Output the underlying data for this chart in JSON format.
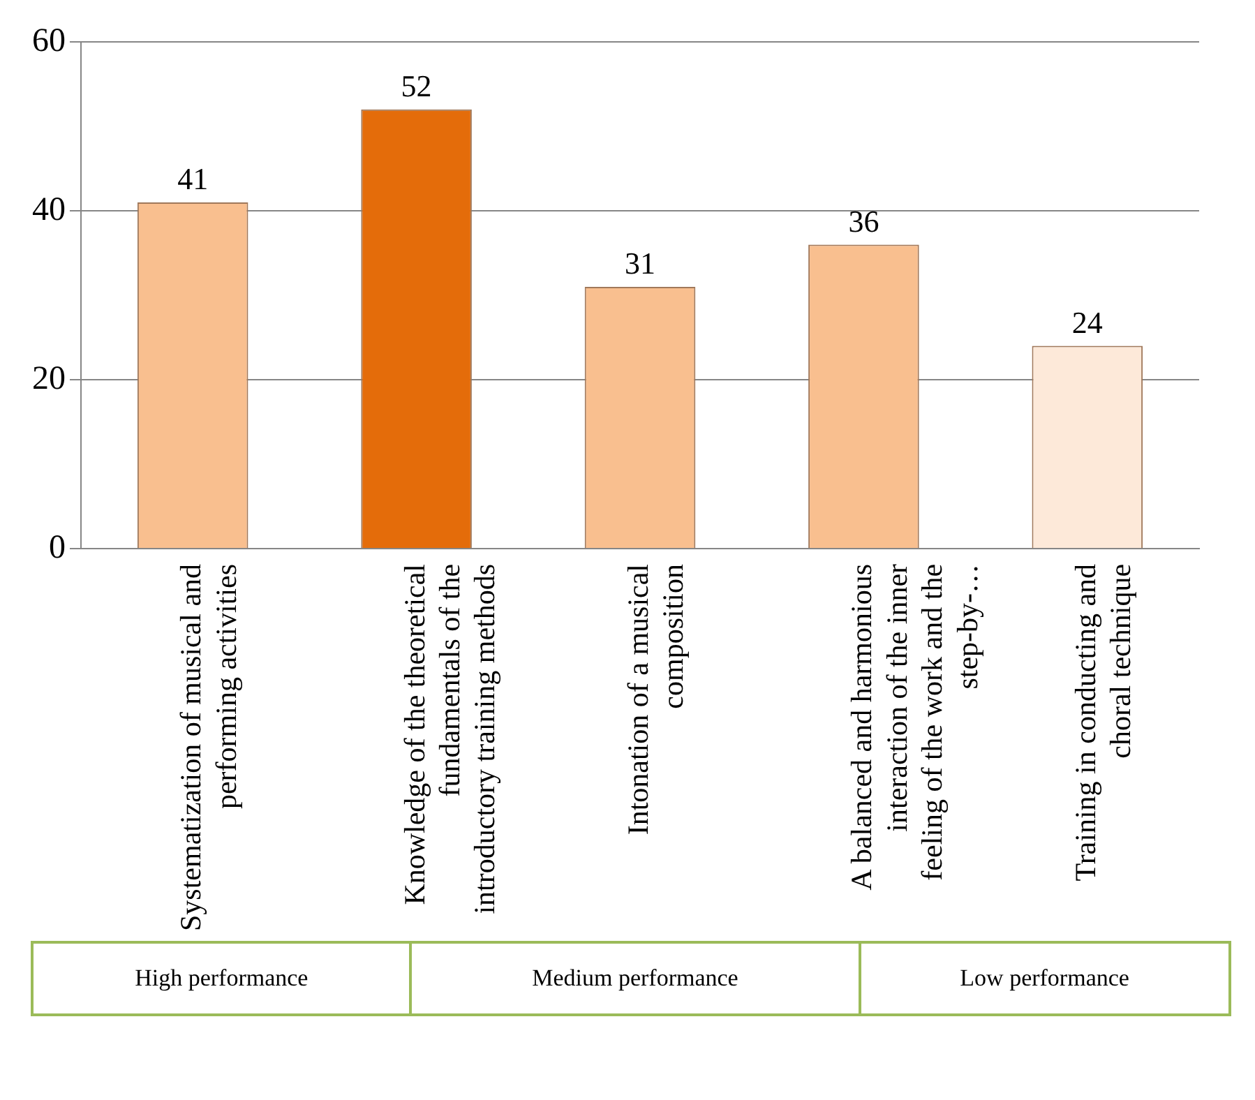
{
  "chart_data": {
    "type": "bar",
    "categories": [
      "Systematization of musical and performing activities",
      "Knowledge of the theoretical fundamentals of the introductory training methods",
      "Intonation of a musical composition",
      "A balanced and harmonious interaction of the inner feeling of the work and the step-by-…",
      "Training in conducting and choral technique"
    ],
    "values": [
      41,
      52,
      31,
      36,
      24
    ],
    "colors": [
      "#f9bf8f",
      "#e46c0a",
      "#f9bf8f",
      "#f9bf8f",
      "#fde9d9"
    ],
    "ylim": [
      0,
      60
    ],
    "yticks": [
      0,
      20,
      40,
      60
    ],
    "grid": "y",
    "legend": false,
    "data_labels": true,
    "annotations": [
      "High performance",
      "Medium performance",
      "Low performance"
    ]
  }
}
